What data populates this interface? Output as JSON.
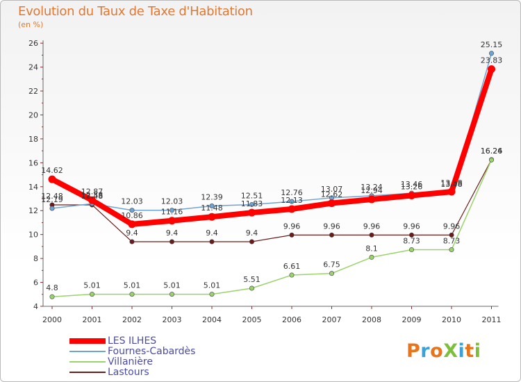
{
  "title": "Evolution du Taux de Taxe d'Habitation",
  "subtitle": "(en %)",
  "logo": {
    "text": "ProXiti",
    "colors": [
      "#e8741c",
      "#3aa2d8",
      "#e8741c",
      "#7cbf3a",
      "#3aa2d8",
      "#e8741c",
      "#7cbf3a"
    ]
  },
  "chart_data": {
    "type": "line",
    "title": "Evolution du Taux de Taxe d'Habitation",
    "ylabel": "(en %)",
    "xlabel": "",
    "categories": [
      "2000",
      "2001",
      "2002",
      "2003",
      "2004",
      "2005",
      "2006",
      "2007",
      "2008",
      "2009",
      "2010",
      "2011"
    ],
    "ylim": [
      4,
      26
    ],
    "yticks": [
      4,
      6,
      8,
      10,
      12,
      14,
      16,
      18,
      20,
      22,
      24,
      26
    ],
    "grid": false,
    "legend_position": "bottom-left",
    "series": [
      {
        "name": "LES ILHES",
        "color": "#ff0000",
        "values": [
          14.62,
          12.87,
          10.86,
          11.16,
          11.48,
          11.83,
          12.13,
          12.62,
          12.94,
          13.26,
          13.58,
          23.83
        ],
        "labels": [
          "14.62",
          "12.87",
          "10.86",
          "11.16",
          "11.48",
          "11.83",
          "12.13",
          "12.62",
          "12.94",
          "13.26",
          "13.58",
          "23.83"
        ]
      },
      {
        "name": "Fournes-Cabardès",
        "color": "#6fa3d2",
        "values": [
          12.19,
          12.58,
          12.03,
          12.03,
          12.39,
          12.51,
          12.76,
          13.07,
          13.24,
          13.46,
          13.48,
          25.15
        ],
        "labels": [
          "12.19",
          "12.58",
          "12.03",
          "12.03",
          "12.39",
          "12.51",
          "12.76",
          "13.07",
          "13.24",
          "13.46",
          "13.48",
          "25.15"
        ]
      },
      {
        "name": "Villanière",
        "color": "#99d36a",
        "values": [
          4.8,
          5.01,
          5.01,
          5.01,
          5.01,
          5.51,
          6.61,
          6.75,
          8.1,
          8.73,
          8.73,
          16.24
        ],
        "labels": [
          "4.8",
          "5.01",
          "5.01",
          "5.01",
          "5.01",
          "5.51",
          "6.61",
          "6.75",
          "8.1",
          "8.73",
          "8.73",
          "16.24"
        ]
      },
      {
        "name": "Lastours",
        "color": "#6b1a1a",
        "values": [
          12.48,
          12.48,
          9.4,
          9.4,
          9.4,
          9.4,
          9.96,
          9.96,
          9.96,
          9.96,
          9.96,
          16.26
        ],
        "labels": [
          "12.48",
          "12.48",
          "9.4",
          "9.4",
          "9.4",
          "9.4",
          "9.96",
          "9.96",
          "9.96",
          "9.96",
          "9.96",
          "16.26"
        ]
      }
    ]
  }
}
